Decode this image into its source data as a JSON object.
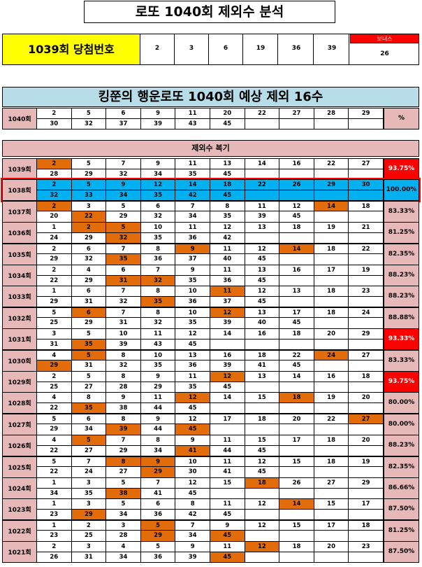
{
  "title": "로또 1040회 제외수 분석",
  "winning": {
    "label": "1039회 당첨번호",
    "numbers": [
      "2",
      "3",
      "6",
      "19",
      "36",
      "39"
    ],
    "bonus_label": "보너스",
    "bonus": "26"
  },
  "prediction": {
    "title": "킹쭌의 행운로또 1040회 예상 제외 16수",
    "round": "1040회",
    "top": [
      "2",
      "5",
      "6",
      "9",
      "11",
      "20",
      "22",
      "27",
      "28",
      "29"
    ],
    "bottom": [
      "30",
      "32",
      "37",
      "39",
      "43",
      "45",
      "",
      "",
      "",
      ""
    ],
    "pct_label": "%"
  },
  "review": {
    "title": "제외수 복기",
    "rows": [
      {
        "round": "1039회",
        "top": [
          "2",
          "5",
          "7",
          "9",
          "11",
          "13",
          "14",
          "16",
          "22",
          "27"
        ],
        "bottom": [
          "28",
          "29",
          "32",
          "34",
          "35",
          "45",
          "",
          "",
          "",
          ""
        ],
        "hits_top": [
          0
        ],
        "hits_bot": [],
        "pct": "93.75%",
        "pct_style": "red",
        "highlight": false
      },
      {
        "round": "1038회",
        "top": [
          "2",
          "5",
          "9",
          "12",
          "14",
          "18",
          "22",
          "26",
          "29",
          "30"
        ],
        "bottom": [
          "32",
          "33",
          "34",
          "35",
          "42",
          "45",
          "",
          "",
          "",
          ""
        ],
        "hits_top": [],
        "hits_bot": [],
        "pct": "100.00%",
        "pct_style": "blue",
        "highlight": true
      },
      {
        "round": "1037회",
        "top": [
          "2",
          "3",
          "5",
          "6",
          "7",
          "8",
          "11",
          "12",
          "14",
          "18"
        ],
        "bottom": [
          "20",
          "22",
          "29",
          "32",
          "34",
          "35",
          "39",
          "45",
          "",
          ""
        ],
        "hits_top": [
          0,
          8
        ],
        "hits_bot": [
          1
        ],
        "pct": "83.33%",
        "pct_style": "",
        "highlight": false
      },
      {
        "round": "1036회",
        "top": [
          "1",
          "2",
          "5",
          "10",
          "11",
          "12",
          "13",
          "18",
          "19",
          "21"
        ],
        "bottom": [
          "24",
          "29",
          "32",
          "35",
          "36",
          "42",
          "",
          "",
          "",
          ""
        ],
        "hits_top": [
          1,
          2
        ],
        "hits_bot": [
          2
        ],
        "pct": "81.25%",
        "pct_style": "",
        "highlight": false
      },
      {
        "round": "1035회",
        "top": [
          "2",
          "6",
          "7",
          "8",
          "9",
          "11",
          "12",
          "14",
          "18",
          "22"
        ],
        "bottom": [
          "29",
          "32",
          "35",
          "36",
          "37",
          "40",
          "45",
          "",
          "",
          ""
        ],
        "hits_top": [
          4,
          7
        ],
        "hits_bot": [
          2
        ],
        "pct": "82.35%",
        "pct_style": "",
        "highlight": false
      },
      {
        "round": "1034회",
        "top": [
          "2",
          "4",
          "6",
          "7",
          "9",
          "11",
          "13",
          "16",
          "17",
          "19"
        ],
        "bottom": [
          "22",
          "29",
          "31",
          "32",
          "35",
          "36",
          "45",
          "",
          "",
          ""
        ],
        "hits_top": [],
        "hits_bot": [
          2,
          3
        ],
        "pct": "88.23%",
        "pct_style": "",
        "highlight": false
      },
      {
        "round": "1033회",
        "top": [
          "1",
          "6",
          "7",
          "8",
          "10",
          "11",
          "12",
          "13",
          "18",
          "23"
        ],
        "bottom": [
          "29",
          "31",
          "32",
          "35",
          "36",
          "37",
          "45",
          "",
          "",
          ""
        ],
        "hits_top": [
          5
        ],
        "hits_bot": [
          3
        ],
        "pct": "88.23%",
        "pct_style": "",
        "highlight": false
      },
      {
        "round": "1032회",
        "top": [
          "5",
          "6",
          "7",
          "8",
          "10",
          "12",
          "13",
          "17",
          "18",
          "24"
        ],
        "bottom": [
          "25",
          "29",
          "31",
          "32",
          "35",
          "39",
          "40",
          "45",
          "",
          ""
        ],
        "hits_top": [
          1,
          5
        ],
        "hits_bot": [],
        "pct": "88.88%",
        "pct_style": "",
        "highlight": false
      },
      {
        "round": "1031회",
        "top": [
          "3",
          "5",
          "10",
          "11",
          "12",
          "14",
          "16",
          "18",
          "20",
          "29"
        ],
        "bottom": [
          "31",
          "35",
          "39",
          "43",
          "45",
          "",
          "",
          "",
          "",
          ""
        ],
        "hits_top": [],
        "hits_bot": [
          1
        ],
        "pct": "93.33%",
        "pct_style": "red",
        "highlight": false
      },
      {
        "round": "1030회",
        "top": [
          "4",
          "5",
          "8",
          "10",
          "13",
          "16",
          "18",
          "22",
          "24",
          "27"
        ],
        "bottom": [
          "29",
          "31",
          "32",
          "35",
          "36",
          "39",
          "41",
          "45",
          "",
          ""
        ],
        "hits_top": [
          1,
          8
        ],
        "hits_bot": [
          0
        ],
        "pct": "83.33%",
        "pct_style": "",
        "highlight": false
      },
      {
        "round": "1029회",
        "top": [
          "2",
          "5",
          "8",
          "9",
          "11",
          "12",
          "13",
          "14",
          "16",
          "18"
        ],
        "bottom": [
          "25",
          "27",
          "28",
          "29",
          "35",
          "45",
          "",
          "",
          "",
          ""
        ],
        "hits_top": [
          5
        ],
        "hits_bot": [],
        "pct": "93.75%",
        "pct_style": "red",
        "highlight": false
      },
      {
        "round": "1028회",
        "top": [
          "4",
          "8",
          "9",
          "11",
          "12",
          "14",
          "15",
          "18",
          "19",
          "20"
        ],
        "bottom": [
          "22",
          "35",
          "38",
          "44",
          "45",
          "",
          "",
          "",
          "",
          ""
        ],
        "hits_top": [
          4,
          7
        ],
        "hits_bot": [
          1
        ],
        "pct": "80.00%",
        "pct_style": "",
        "highlight": false
      },
      {
        "round": "1027회",
        "top": [
          "5",
          "6",
          "8",
          "9",
          "12",
          "17",
          "18",
          "20",
          "22",
          "27"
        ],
        "bottom": [
          "29",
          "34",
          "39",
          "44",
          "45",
          "",
          "",
          "",
          "",
          ""
        ],
        "hits_top": [
          9
        ],
        "hits_bot": [
          2,
          4
        ],
        "pct": "80.00%",
        "pct_style": "",
        "highlight": false
      },
      {
        "round": "1026회",
        "top": [
          "4",
          "5",
          "7",
          "8",
          "9",
          "11",
          "15",
          "17",
          "18",
          "20"
        ],
        "bottom": [
          "22",
          "27",
          "29",
          "34",
          "41",
          "44",
          "45",
          "",
          "",
          ""
        ],
        "hits_top": [
          1
        ],
        "hits_bot": [
          4
        ],
        "pct": "88.23%",
        "pct_style": "",
        "highlight": false
      },
      {
        "round": "1025회",
        "top": [
          "5",
          "7",
          "8",
          "9",
          "10",
          "11",
          "12",
          "15",
          "18",
          "19"
        ],
        "bottom": [
          "22",
          "24",
          "27",
          "29",
          "30",
          "41",
          "45",
          "",
          "",
          ""
        ],
        "hits_top": [
          2,
          3
        ],
        "hits_bot": [
          3
        ],
        "pct": "82.35%",
        "pct_style": "",
        "highlight": false
      },
      {
        "round": "1024회",
        "top": [
          "1",
          "3",
          "5",
          "7",
          "12",
          "15",
          "18",
          "26",
          "27",
          "29"
        ],
        "bottom": [
          "34",
          "35",
          "38",
          "41",
          "45",
          "",
          "",
          "",
          "",
          ""
        ],
        "hits_top": [
          6
        ],
        "hits_bot": [
          2
        ],
        "pct": "86.66%",
        "pct_style": "",
        "highlight": false
      },
      {
        "round": "1023회",
        "top": [
          "1",
          "3",
          "5",
          "6",
          "8",
          "11",
          "12",
          "14",
          "15",
          "17"
        ],
        "bottom": [
          "23",
          "29",
          "34",
          "36",
          "42",
          "45",
          "",
          "",
          "",
          ""
        ],
        "hits_top": [
          7
        ],
        "hits_bot": [
          1
        ],
        "pct": "87.50%",
        "pct_style": "",
        "highlight": false
      },
      {
        "round": "1022회",
        "top": [
          "1",
          "2",
          "3",
          "5",
          "7",
          "9",
          "12",
          "15",
          "17",
          "18"
        ],
        "bottom": [
          "23",
          "25",
          "28",
          "29",
          "34",
          "45",
          "",
          "",
          "",
          ""
        ],
        "hits_top": [
          3
        ],
        "hits_bot": [
          3,
          5
        ],
        "pct": "81.25%",
        "pct_style": "",
        "highlight": false
      },
      {
        "round": "1021회",
        "top": [
          "2",
          "3",
          "4",
          "5",
          "9",
          "11",
          "12",
          "18",
          "20",
          "23"
        ],
        "bottom": [
          "26",
          "31",
          "34",
          "36",
          "39",
          "45",
          "",
          "",
          "",
          ""
        ],
        "hits_top": [
          6
        ],
        "hits_bot": [
          5
        ],
        "pct": "87.50%",
        "pct_style": "",
        "highlight": false
      }
    ]
  }
}
